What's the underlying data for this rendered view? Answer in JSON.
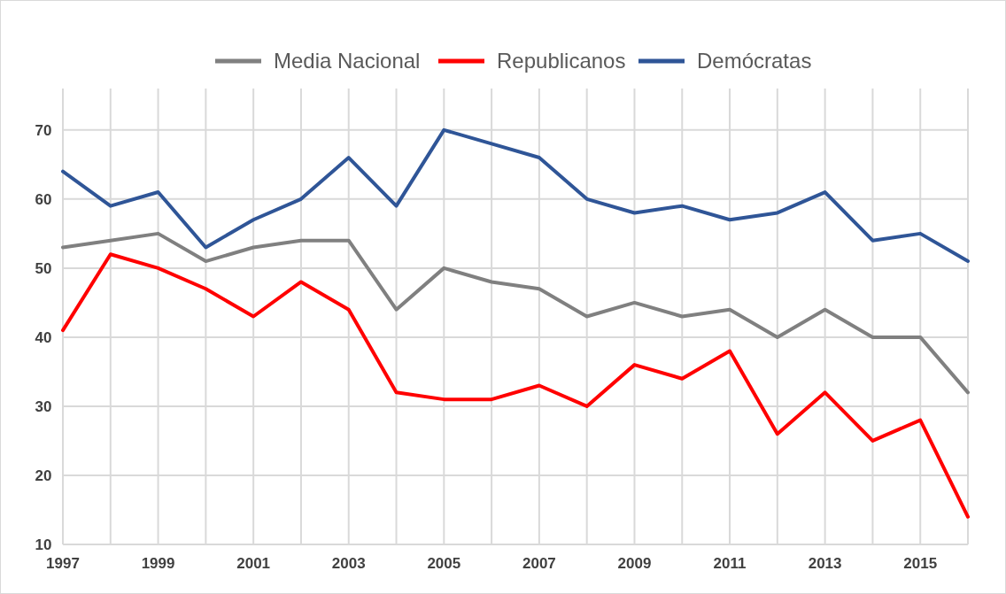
{
  "chart_data": {
    "type": "line",
    "x": [
      1997,
      1998,
      1999,
      2000,
      2001,
      2002,
      2003,
      2004,
      2005,
      2006,
      2007,
      2008,
      2009,
      2010,
      2011,
      2012,
      2013,
      2014,
      2015,
      2016
    ],
    "series": [
      {
        "name": "Media Nacional",
        "color": "#808080",
        "values": [
          53,
          54,
          55,
          51,
          53,
          54,
          54,
          44,
          50,
          48,
          47,
          43,
          45,
          43,
          44,
          40,
          44,
          40,
          40,
          32
        ]
      },
      {
        "name": "Republicanos",
        "color": "#ff0000",
        "values": [
          41,
          52,
          50,
          47,
          43,
          48,
          44,
          32,
          31,
          31,
          33,
          30,
          36,
          34,
          38,
          26,
          32,
          25,
          28,
          14
        ]
      },
      {
        "name": "Demócratas",
        "color": "#2f5597",
        "values": [
          64,
          59,
          61,
          53,
          57,
          60,
          66,
          59,
          70,
          68,
          66,
          60,
          58,
          59,
          57,
          58,
          61,
          54,
          55,
          51
        ]
      }
    ],
    "xlim": [
      1997,
      2016
    ],
    "xticks": [
      1997,
      {
        "value": 1998,
        "label": null
      },
      1999,
      {
        "value": 2000,
        "label": null
      },
      2001,
      {
        "value": 2002,
        "label": null
      },
      2003,
      {
        "value": 2004,
        "label": null
      },
      2005,
      {
        "value": 2006,
        "label": null
      },
      2007,
      {
        "value": 2008,
        "label": null
      },
      2009,
      {
        "value": 2010,
        "label": null
      },
      2011,
      {
        "value": 2012,
        "label": null
      },
      2013,
      {
        "value": 2014,
        "label": null
      },
      2015,
      {
        "value": 2016,
        "label": null
      }
    ],
    "ylim": [
      10,
      76
    ],
    "yticks": [
      10,
      20,
      30,
      40,
      50,
      60,
      70
    ],
    "grid": true,
    "legend": "top",
    "marker": "none",
    "line_style": "solid"
  }
}
